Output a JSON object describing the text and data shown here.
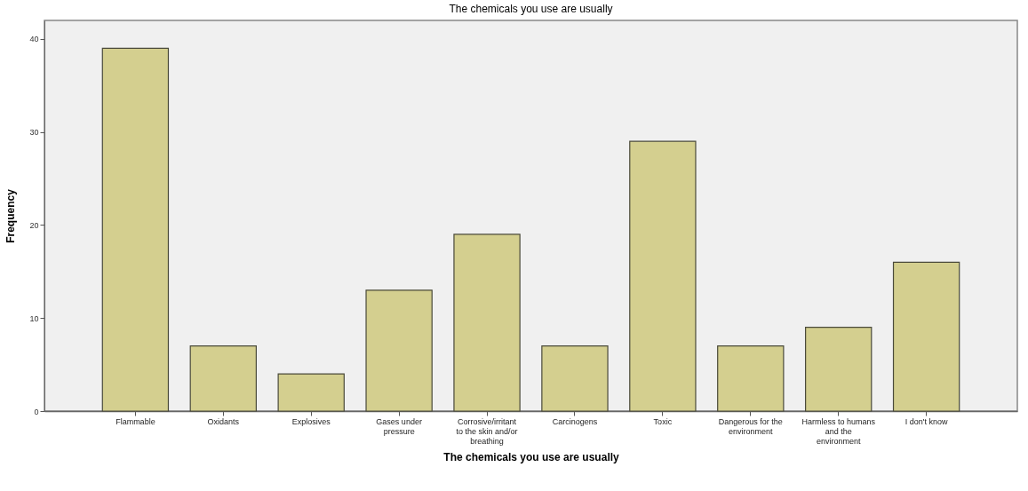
{
  "chart_data": {
    "type": "bar",
    "title": "The chemicals you use are usually",
    "xlabel": "The chemicals you use are usually",
    "ylabel": "Frequency",
    "categories": [
      "Flammable",
      "Oxidants",
      "Explosives",
      "Gases under pressure",
      "Corrosive/irritant to the skin and/or breathing",
      "Carcinogens",
      "Toxic",
      "Dangerous for the environment",
      "Harmless to humans and the environment",
      "I don't know"
    ],
    "values": [
      39,
      7,
      4,
      13,
      19,
      7,
      29,
      7,
      9,
      16
    ],
    "color": "#d4cf8f",
    "ylim": [
      0,
      42
    ],
    "yticks": [
      0,
      10,
      20,
      30,
      40
    ],
    "grid": false
  }
}
